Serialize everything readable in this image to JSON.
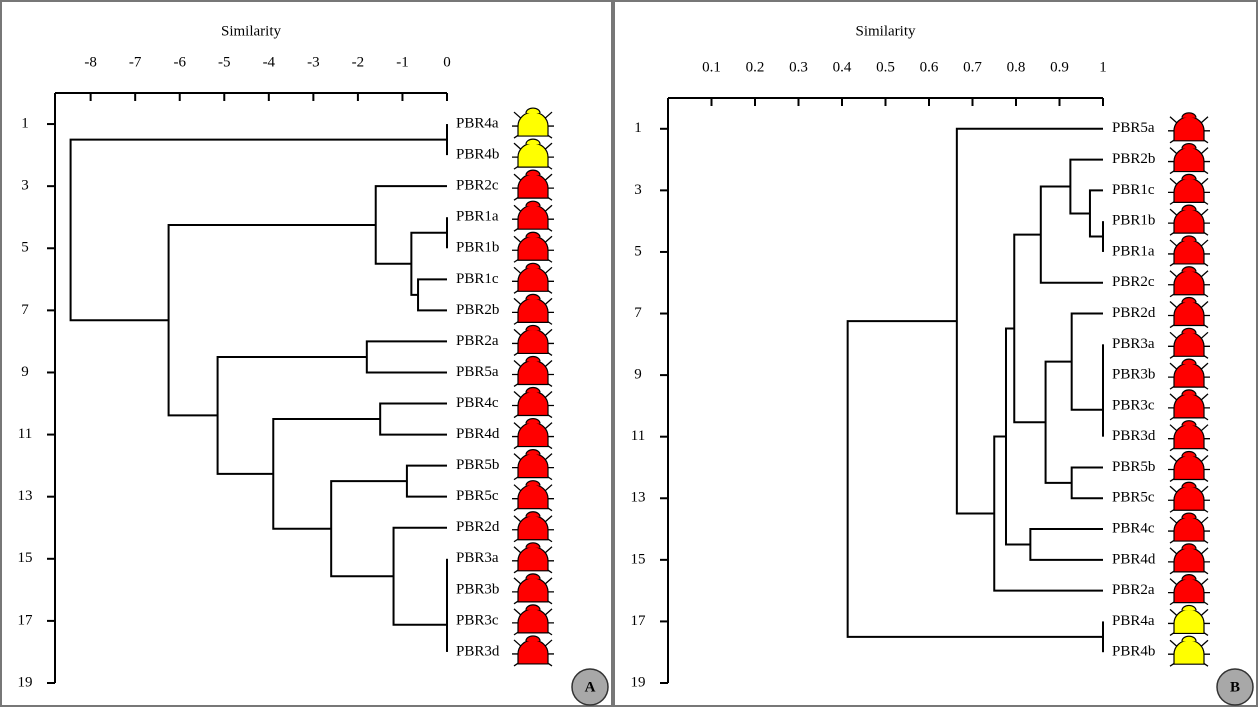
{
  "chart_data": [
    {
      "type": "dendrogram",
      "title": "Similarity",
      "label": "A",
      "xlim": [
        -8.8,
        0
      ],
      "xticks": [
        -8,
        -7,
        -6,
        -5,
        -4,
        -3,
        -2,
        -1,
        0
      ],
      "ylim": [
        19,
        0
      ],
      "yticks": [
        1,
        3,
        5,
        7,
        9,
        11,
        13,
        15,
        17,
        19
      ],
      "leaves": [
        "PBR4a",
        "PBR4b",
        "PBR2c",
        "PBR1a",
        "PBR1b",
        "PBR1c",
        "PBR2b",
        "PBR2a",
        "PBR5a",
        "PBR4c",
        "PBR4d",
        "PBR5b",
        "PBR5c",
        "PBR2d",
        "PBR3a",
        "PBR3b",
        "PBR3c",
        "PBR3d"
      ],
      "leaf_colors": [
        "#ffff00",
        "#ffff00",
        "#ff0000",
        "#ff0000",
        "#ff0000",
        "#ff0000",
        "#ff0000",
        "#ff0000",
        "#ff0000",
        "#ff0000",
        "#ff0000",
        "#ff0000",
        "#ff0000",
        "#ff0000",
        "#ff0000",
        "#ff0000",
        "#ff0000",
        "#ff0000"
      ],
      "merges": [
        {
          "join": [
            0,
            1
          ],
          "value": 0
        },
        {
          "join": [
            3,
            4
          ],
          "value": 0
        },
        {
          "join": [
            5,
            6
          ],
          "value": -0.65
        },
        {
          "join": [
            19,
            20
          ],
          "value": -0.8
        },
        {
          "join": [
            2,
            21
          ],
          "value": -1.6
        },
        {
          "join": [
            7,
            8
          ],
          "value": -1.8
        },
        {
          "join": [
            9,
            10
          ],
          "value": -1.5
        },
        {
          "join": [
            11,
            12
          ],
          "value": -0.9
        },
        {
          "join": [
            14,
            15
          ],
          "value": 0
        },
        {
          "join": [
            26,
            16
          ],
          "value": 0
        },
        {
          "join": [
            27,
            17
          ],
          "value": 0
        },
        {
          "join": [
            13,
            28
          ],
          "value": -1.2
        },
        {
          "join": [
            25,
            29
          ],
          "value": -2.6
        },
        {
          "join": [
            24,
            30
          ],
          "value": -3.9
        },
        {
          "join": [
            23,
            31
          ],
          "value": -5.15
        },
        {
          "join": [
            22,
            32
          ],
          "value": -6.25
        },
        {
          "join": [
            18,
            33
          ],
          "value": -8.45
        }
      ]
    },
    {
      "type": "dendrogram",
      "title": "Similarity",
      "label": "B",
      "xlim": [
        0,
        1
      ],
      "xticks": [
        0.1,
        0.2,
        0.3,
        0.4,
        0.5,
        0.6,
        0.7,
        0.8,
        0.9,
        1
      ],
      "ylim": [
        19,
        0
      ],
      "yticks": [
        1,
        3,
        5,
        7,
        9,
        11,
        13,
        15,
        17,
        19
      ],
      "leaves": [
        "PBR5a",
        "PBR2b",
        "PBR1c",
        "PBR1b",
        "PBR1a",
        "PBR2c",
        "PBR2d",
        "PBR3a",
        "PBR3b",
        "PBR3c",
        "PBR3d",
        "PBR5b",
        "PBR5c",
        "PBR4c",
        "PBR4d",
        "PBR2a",
        "PBR4a",
        "PBR4b"
      ],
      "leaf_colors": [
        "#ff0000",
        "#ff0000",
        "#ff0000",
        "#ff0000",
        "#ff0000",
        "#ff0000",
        "#ff0000",
        "#ff0000",
        "#ff0000",
        "#ff0000",
        "#ff0000",
        "#ff0000",
        "#ff0000",
        "#ff0000",
        "#ff0000",
        "#ff0000",
        "#ffff00",
        "#ffff00"
      ],
      "merges": [
        {
          "join": [
            3,
            4
          ],
          "value": 1
        },
        {
          "join": [
            2,
            18
          ],
          "value": 0.97
        },
        {
          "join": [
            1,
            19
          ],
          "value": 0.925
        },
        {
          "join": [
            20,
            5
          ],
          "value": 0.857
        },
        {
          "join": [
            7,
            8
          ],
          "value": 1
        },
        {
          "join": [
            22,
            9
          ],
          "value": 1
        },
        {
          "join": [
            23,
            10
          ],
          "value": 1
        },
        {
          "join": [
            6,
            24
          ],
          "value": 0.928
        },
        {
          "join": [
            11,
            12
          ],
          "value": 0.928
        },
        {
          "join": [
            25,
            26
          ],
          "value": 0.868
        },
        {
          "join": [
            21,
            27
          ],
          "value": 0.796
        },
        {
          "join": [
            13,
            14
          ],
          "value": 0.833
        },
        {
          "join": [
            28,
            29
          ],
          "value": 0.777
        },
        {
          "join": [
            30,
            15
          ],
          "value": 0.75
        },
        {
          "join": [
            31,
            0
          ],
          "value": 0.664
        },
        {
          "join": [
            16,
            17
          ],
          "value": 1
        },
        {
          "join": [
            32,
            33
          ],
          "value": 0.413
        }
      ]
    }
  ]
}
